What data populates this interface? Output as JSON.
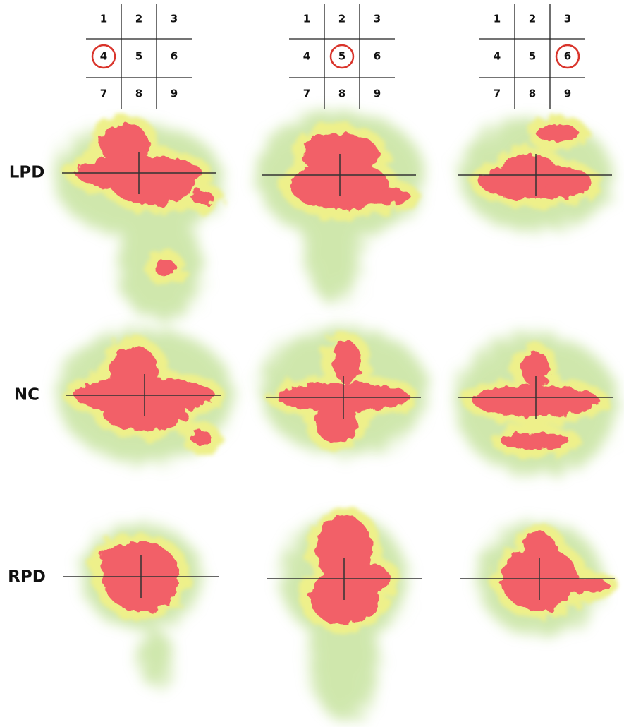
{
  "grids": [
    {
      "cells": [
        "1",
        "2",
        "3",
        "4",
        "5",
        "6",
        "7",
        "8",
        "9"
      ],
      "circled": 3
    },
    {
      "cells": [
        "1",
        "2",
        "3",
        "4",
        "5",
        "6",
        "7",
        "8",
        "9"
      ],
      "circled": 4
    },
    {
      "cells": [
        "1",
        "2",
        "3",
        "4",
        "5",
        "6",
        "7",
        "8",
        "9"
      ],
      "circled": 5
    }
  ],
  "rows": [
    {
      "label": "LPD"
    },
    {
      "label": "NC"
    },
    {
      "label": "RPD"
    }
  ]
}
